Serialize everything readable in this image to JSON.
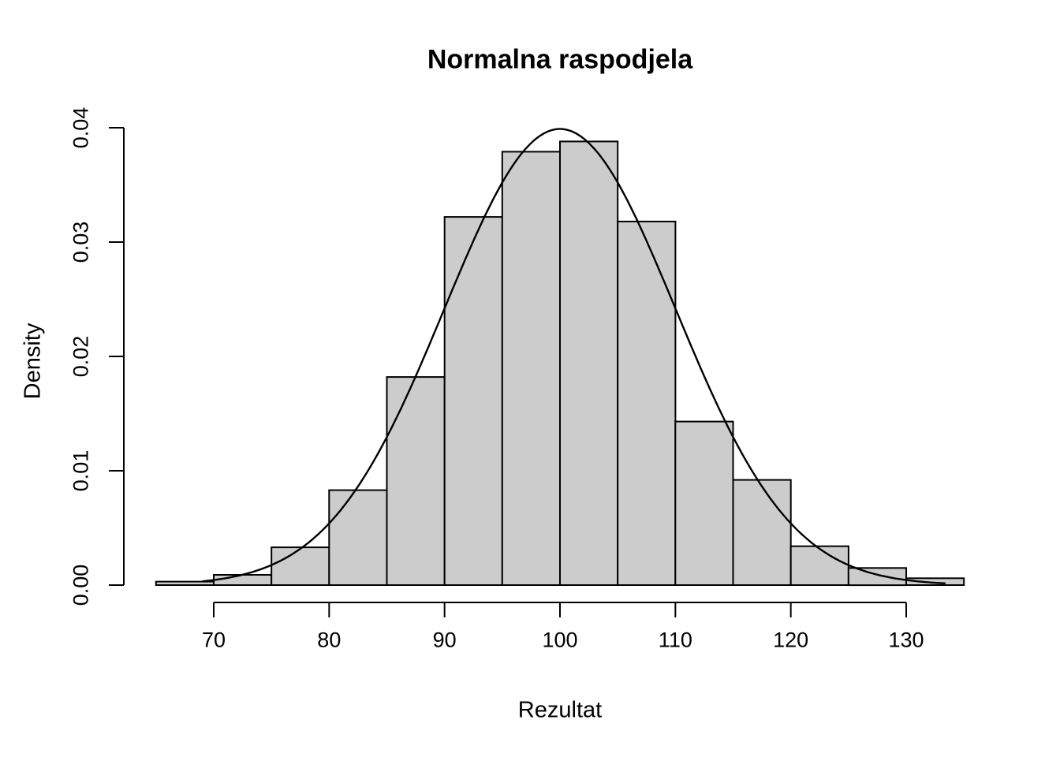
{
  "chart_data": {
    "type": "bar",
    "subtype": "histogram-with-density-curve",
    "title": "Normalna raspodjela",
    "xlabel": "Rezultat",
    "ylabel": "Density",
    "bin_edges": [
      65,
      70,
      75,
      80,
      85,
      90,
      95,
      100,
      105,
      110,
      115,
      120,
      125,
      130,
      135
    ],
    "densities": [
      0.0003,
      0.0009,
      0.0033,
      0.0083,
      0.0182,
      0.0322,
      0.0379,
      0.0388,
      0.0318,
      0.0143,
      0.0092,
      0.0034,
      0.0015,
      0.0006
    ],
    "x_ticks": [
      70,
      80,
      90,
      100,
      110,
      120,
      130
    ],
    "x_tick_labels": [
      "70",
      "80",
      "90",
      "100",
      "110",
      "120",
      "130"
    ],
    "y_ticks": [
      0,
      0.01,
      0.02,
      0.03,
      0.04
    ],
    "y_tick_labels": [
      "0.00",
      "0.01",
      "0.02",
      "0.03",
      "0.04"
    ],
    "xlim": [
      65,
      135
    ],
    "ylim": [
      0,
      0.04
    ],
    "grid": false,
    "legend": "none",
    "curve": {
      "type": "normal-density",
      "mean": 100,
      "sd": 10,
      "x_range": [
        69,
        133.4
      ]
    },
    "colors": {
      "bar_fill": "#cccccc",
      "bar_stroke": "#000000",
      "curve": "#000000",
      "axis": "#000000",
      "background": "#ffffff"
    }
  }
}
